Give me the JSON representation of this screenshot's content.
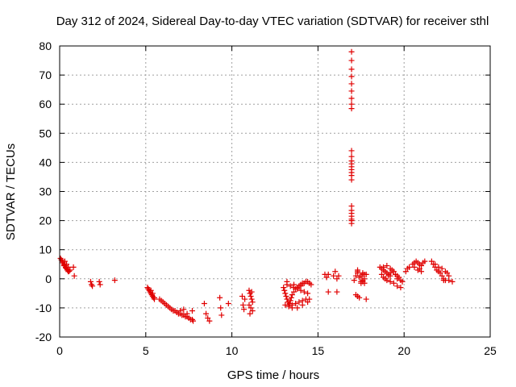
{
  "chart_data": {
    "type": "scatter",
    "title": "Day 312 of 2024, Sidereal Day-to-day VTEC variation (SDTVAR) for receiver sthl",
    "xlabel": "GPS time / hours",
    "ylabel": "SDTVAR / TECUs",
    "xlim": [
      0,
      25
    ],
    "ylim": [
      -20,
      80
    ],
    "xticks": [
      0,
      5,
      10,
      15,
      20,
      25
    ],
    "yticks": [
      -20,
      -10,
      0,
      10,
      20,
      30,
      40,
      50,
      60,
      70,
      80
    ],
    "xtick_labels": [
      "0",
      "5",
      "10",
      "15",
      "20",
      "25"
    ],
    "ytick_labels": [
      "-20",
      "-10",
      "0",
      "10",
      "20",
      "30",
      "40",
      "50",
      "60",
      "70",
      "80"
    ],
    "grid": true,
    "marker": "+",
    "series": [
      {
        "name": "SDTVAR",
        "color": "#e00000",
        "x": [
          0.05,
          0.1,
          0.15,
          0.2,
          0.25,
          0.3,
          0.35,
          0.4,
          0.45,
          0.5,
          0.15,
          0.25,
          0.35,
          0.45,
          0.55,
          0.3,
          0.4,
          0.5,
          0.6,
          0.8,
          0.85,
          1.8,
          1.85,
          1.9,
          2.3,
          2.35,
          3.2,
          5.1,
          5.15,
          5.2,
          5.25,
          5.3,
          5.35,
          5.4,
          5.45,
          5.5,
          5.3,
          5.4,
          5.5,
          5.8,
          5.9,
          6.0,
          6.1,
          6.2,
          6.3,
          6.4,
          6.5,
          6.6,
          6.7,
          6.8,
          6.9,
          7.0,
          7.1,
          7.2,
          7.3,
          7.4,
          7.5,
          7.6,
          7.7,
          7.75,
          7.0,
          7.2,
          7.4,
          7.7,
          8.4,
          8.5,
          8.6,
          8.7,
          9.3,
          9.35,
          9.4,
          9.8,
          10.6,
          10.65,
          10.7,
          10.75,
          11.0,
          11.05,
          11.1,
          11.15,
          11.2,
          11.0,
          11.1,
          11.2,
          11.05,
          11.15,
          13.0,
          13.05,
          13.1,
          13.15,
          13.2,
          13.25,
          13.3,
          13.35,
          13.4,
          13.45,
          13.5,
          13.6,
          13.7,
          13.8,
          13.9,
          14.0,
          14.1,
          14.2,
          14.3,
          14.4,
          14.5,
          14.6,
          13.1,
          13.3,
          13.5,
          13.7,
          13.9,
          14.1,
          14.3,
          14.5,
          13.2,
          13.4,
          13.6,
          13.8,
          14.0,
          14.2,
          14.4,
          13.5,
          13.8,
          14.1,
          14.4,
          13.2,
          13.6,
          14.0,
          15.4,
          15.5,
          15.6,
          15.6,
          15.9,
          16.0,
          16.1,
          16.1,
          16.2,
          16.95,
          16.95,
          16.95,
          16.95,
          16.95,
          16.95,
          16.95,
          16.95,
          16.95,
          16.95,
          16.95,
          16.95,
          16.95,
          16.95,
          16.95,
          16.95,
          16.95,
          16.95,
          16.95,
          16.95,
          16.95,
          16.95,
          16.95,
          16.95,
          16.95,
          17.1,
          17.2,
          17.3,
          17.4,
          17.5,
          17.6,
          17.7,
          17.2,
          17.3,
          17.4,
          17.5,
          17.6,
          17.7,
          17.3,
          17.5,
          17.6,
          17.7,
          17.8,
          17.8,
          17.3,
          17.6,
          18.6,
          18.7,
          18.8,
          18.9,
          19.0,
          19.1,
          19.2,
          18.7,
          18.8,
          18.9,
          19.0,
          19.1,
          19.2,
          19.3,
          18.8,
          19.0,
          19.2,
          19.4,
          19.5,
          19.6,
          19.7,
          19.2,
          19.4,
          19.6,
          19.8,
          19.9,
          19.6,
          19.8,
          20.1,
          20.2,
          20.3,
          20.5,
          20.6,
          20.7,
          20.8,
          20.9,
          21.0,
          21.1,
          21.2,
          20.6,
          20.8,
          21.0,
          20.9,
          21.6,
          21.7,
          21.8,
          21.9,
          22.0,
          22.1,
          22.2,
          22.3,
          22.4,
          22.5,
          22.6,
          22.8,
          21.8,
          22.0,
          22.2,
          22.4,
          22.3,
          22.6
        ],
        "y": [
          7.0,
          6.5,
          6.0,
          5.5,
          5.0,
          4.5,
          4.0,
          3.5,
          3.0,
          2.5,
          5.5,
          4.5,
          3.8,
          3.2,
          2.6,
          6.0,
          5.0,
          4.0,
          3.0,
          4.0,
          1.0,
          -1.0,
          -2.0,
          -2.5,
          -1.0,
          -2.0,
          -0.5,
          -3.0,
          -3.5,
          -4.0,
          -4.5,
          -5.0,
          -5.5,
          -6.0,
          -6.5,
          -7.0,
          -4.0,
          -5.0,
          -6.5,
          -7.0,
          -7.5,
          -8.0,
          -8.5,
          -9.0,
          -9.5,
          -10.0,
          -10.5,
          -11.0,
          -11.0,
          -11.5,
          -12.0,
          -12.0,
          -12.5,
          -12.5,
          -13.0,
          -13.0,
          -13.5,
          -14.0,
          -14.0,
          -14.5,
          -11.0,
          -10.5,
          -12.0,
          -11.0,
          -8.5,
          -12.0,
          -13.5,
          -14.5,
          -6.5,
          -10.0,
          -12.5,
          -8.5,
          -6.0,
          -9.0,
          -10.5,
          -7.0,
          -4.0,
          -5.0,
          -6.0,
          -7.0,
          -8.0,
          -9.0,
          -10.0,
          -11.0,
          -12.0,
          -4.5,
          -3.0,
          -4.0,
          -5.0,
          -6.0,
          -7.0,
          -8.0,
          -9.0,
          -8.5,
          -7.5,
          -6.5,
          -5.5,
          -4.5,
          -3.5,
          -3.0,
          -2.5,
          -2.0,
          -1.5,
          -1.5,
          -1.0,
          -1.0,
          -1.5,
          -2.0,
          -9.0,
          -9.5,
          -9.0,
          -8.5,
          -8.0,
          -7.5,
          -7.0,
          -7.0,
          -2.0,
          -2.5,
          -3.0,
          -3.5,
          -4.0,
          -4.5,
          -5.0,
          -10.0,
          -10.0,
          -9.0,
          -8.0,
          -1.0,
          -2.0,
          -2.5,
          1.5,
          0.5,
          1.5,
          -4.5,
          1.0,
          2.5,
          0.0,
          -4.5,
          1.0,
          78.0,
          75.0,
          72.0,
          69.5,
          67.0,
          64.5,
          62.0,
          60.0,
          58.5,
          44.0,
          42.0,
          40.5,
          39.5,
          38.5,
          37.5,
          36.5,
          35.5,
          34.0,
          25.0,
          23.5,
          22.5,
          21.5,
          20.5,
          20.0,
          19.0,
          -0.5,
          1.0,
          2.5,
          0.5,
          -1.0,
          2.0,
          0.0,
          -5.5,
          -6.0,
          -6.5,
          -1.5,
          -0.5,
          1.5,
          2.0,
          1.0,
          -1.0,
          -1.5,
          1.5,
          -7.0,
          3.0,
          1.5,
          4.0,
          3.5,
          3.0,
          2.5,
          2.0,
          1.5,
          1.0,
          1.5,
          0.5,
          0.0,
          -0.5,
          1.0,
          2.0,
          3.0,
          4.0,
          4.5,
          3.5,
          2.5,
          1.5,
          1.0,
          0.5,
          -1.0,
          -1.5,
          -2.5,
          -3.0,
          -1.0,
          0.0,
          -0.5,
          2.5,
          3.5,
          4.0,
          5.0,
          5.5,
          6.0,
          5.5,
          5.0,
          4.5,
          5.5,
          6.0,
          4.0,
          3.0,
          2.5,
          3.5,
          6.0,
          5.0,
          4.0,
          3.0,
          2.5,
          2.0,
          1.0,
          0.0,
          -0.5,
          2.0,
          1.0,
          -1.0,
          5.0,
          4.0,
          3.5,
          2.5,
          -0.5,
          -0.5
        ]
      }
    ]
  }
}
